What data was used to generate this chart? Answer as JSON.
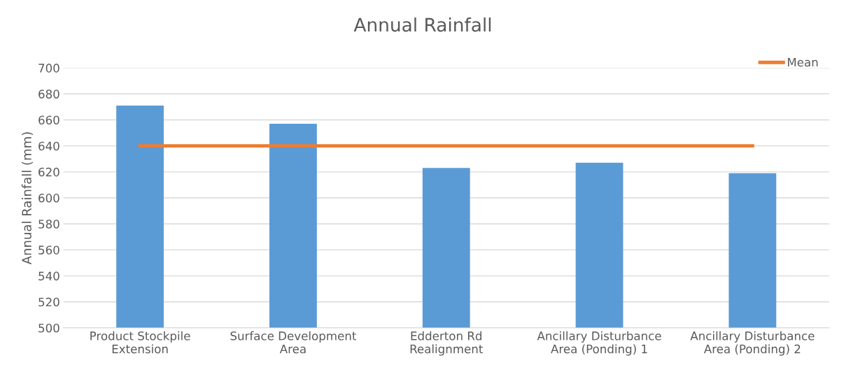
{
  "chart_data": {
    "type": "bar",
    "title": "Annual Rainfall",
    "ylabel": "Annual Rainfall (mm)",
    "categories": [
      "Product Stockpile Extension",
      "Surface Development Area",
      "Edderton Rd Realignment",
      "Ancillary Disturbance Area (Ponding) 1",
      "Ancillary Disturbance Area (Ponding) 2"
    ],
    "series": [
      {
        "color": "#5b9bd5",
        "values": [
          671,
          657,
          623,
          627,
          619
        ]
      },
      {
        "type": "line",
        "name": "Mean",
        "color": "#ed7d31",
        "values": [
          640,
          640,
          640,
          640,
          640
        ]
      }
    ],
    "ylim": [
      500,
      700
    ],
    "yticks": [
      500,
      520,
      540,
      560,
      580,
      600,
      620,
      640,
      660,
      680,
      700
    ],
    "grid": "y",
    "legend": "top right",
    "marker": "none"
  }
}
